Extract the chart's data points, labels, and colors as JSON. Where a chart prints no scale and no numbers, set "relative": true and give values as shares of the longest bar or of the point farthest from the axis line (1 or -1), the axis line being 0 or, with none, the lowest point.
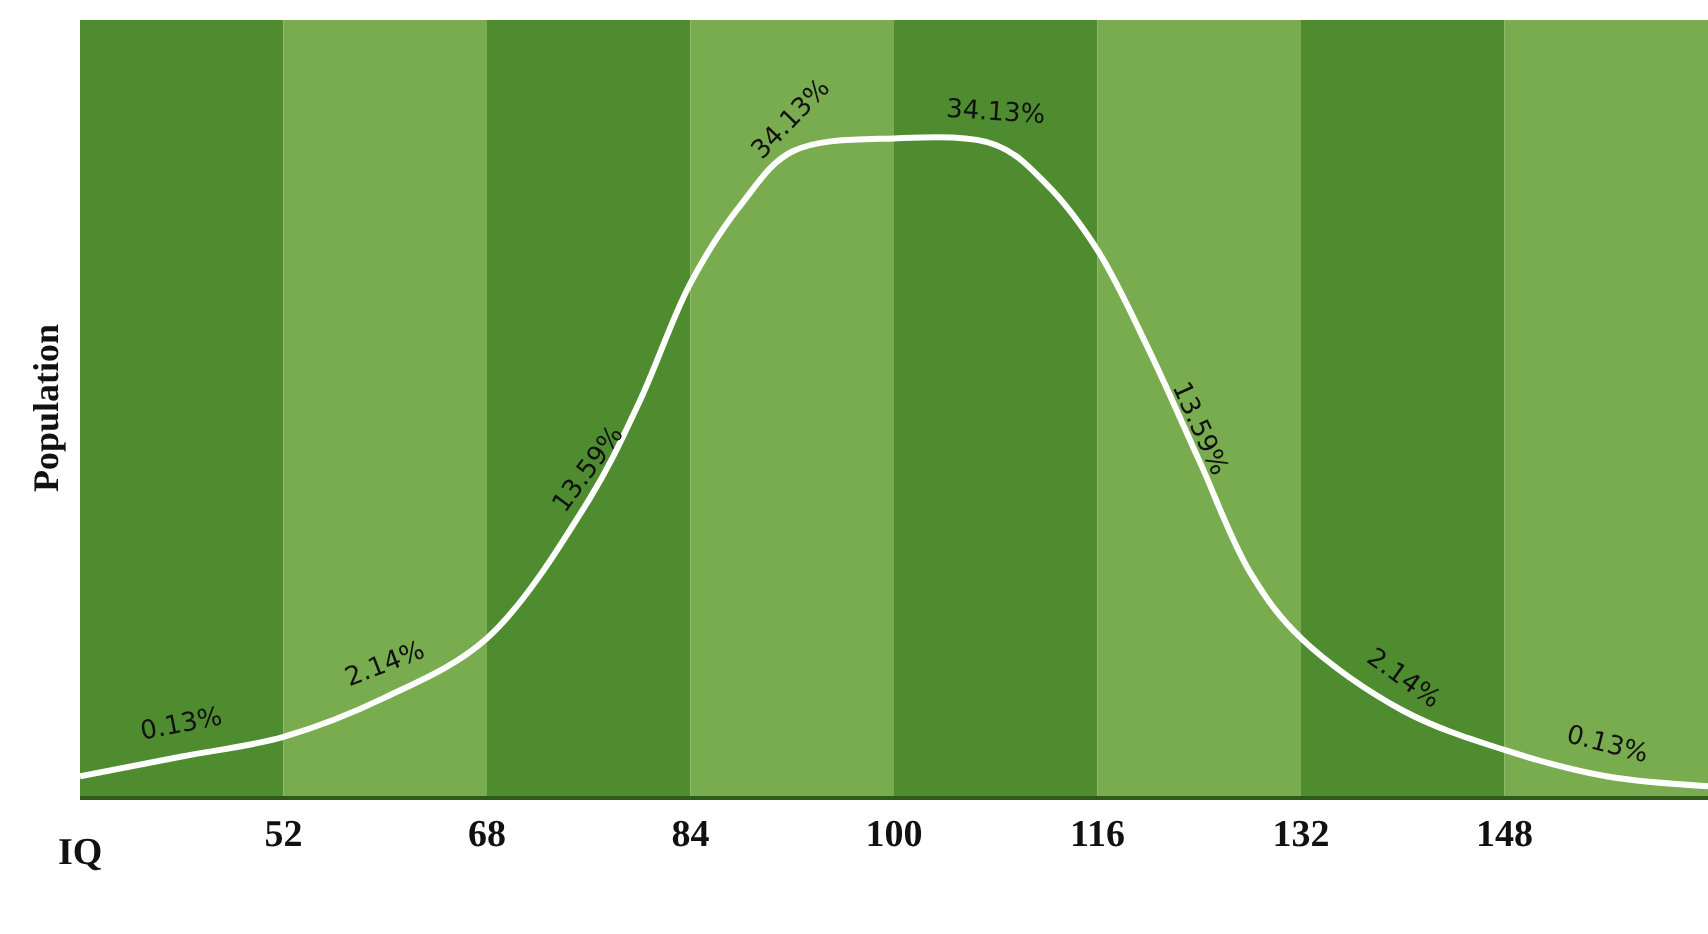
{
  "chart_data": {
    "type": "line",
    "relative": true,
    "ylabel": "Population",
    "xlabel": "IQ",
    "x": [
      36,
      44,
      52,
      60,
      68,
      76,
      80,
      84,
      88,
      92,
      100,
      108,
      112,
      116,
      120,
      124,
      128,
      132,
      140,
      148,
      156,
      164
    ],
    "series": [
      {
        "color": "#ffffff",
        "values": [
          0.03,
          0.06,
          0.09,
          0.15,
          0.24,
          0.45,
          0.6,
          0.78,
          0.9,
          0.98,
          1.0,
          0.99,
          0.93,
          0.83,
          0.68,
          0.51,
          0.34,
          0.24,
          0.13,
          0.07,
          0.03,
          0.015
        ]
      }
    ],
    "xlim": [
      36,
      164
    ],
    "xticks": [
      52,
      68,
      84,
      100,
      116,
      132,
      148
    ],
    "bands": [
      {
        "axis": "x",
        "from": 36,
        "to": 52,
        "color": "#4f8b2f"
      },
      {
        "axis": "x",
        "from": 52,
        "to": 68,
        "color": "#79ac4e"
      },
      {
        "axis": "x",
        "from": 68,
        "to": 84,
        "color": "#4f8b2f"
      },
      {
        "axis": "x",
        "from": 84,
        "to": 100,
        "color": "#79ac4e"
      },
      {
        "axis": "x",
        "from": 100,
        "to": 116,
        "color": "#4f8b2f"
      },
      {
        "axis": "x",
        "from": 116,
        "to": 132,
        "color": "#79ac4e"
      },
      {
        "axis": "x",
        "from": 132,
        "to": 148,
        "color": "#4f8b2f"
      },
      {
        "axis": "x",
        "from": 148,
        "to": 164,
        "color": "#79ac4e"
      }
    ],
    "annotations": [
      {
        "text": "0.13%",
        "x": 44,
        "y": 0.06
      },
      {
        "text": "2.14%",
        "x": 60,
        "y": 0.15
      },
      {
        "text": "13.59%",
        "x": 76,
        "y": 0.45
      },
      {
        "text": "34.13%",
        "x": 92,
        "y": 0.98
      },
      {
        "text": "34.13%",
        "x": 108,
        "y": 0.99
      },
      {
        "text": "13.59%",
        "x": 124,
        "y": 0.51
      },
      {
        "text": "2.14%",
        "x": 140,
        "y": 0.13
      },
      {
        "text": "0.13%",
        "x": 156,
        "y": 0.03
      }
    ],
    "grid": false,
    "legend": false,
    "marker": "none",
    "line_style": "solid"
  }
}
